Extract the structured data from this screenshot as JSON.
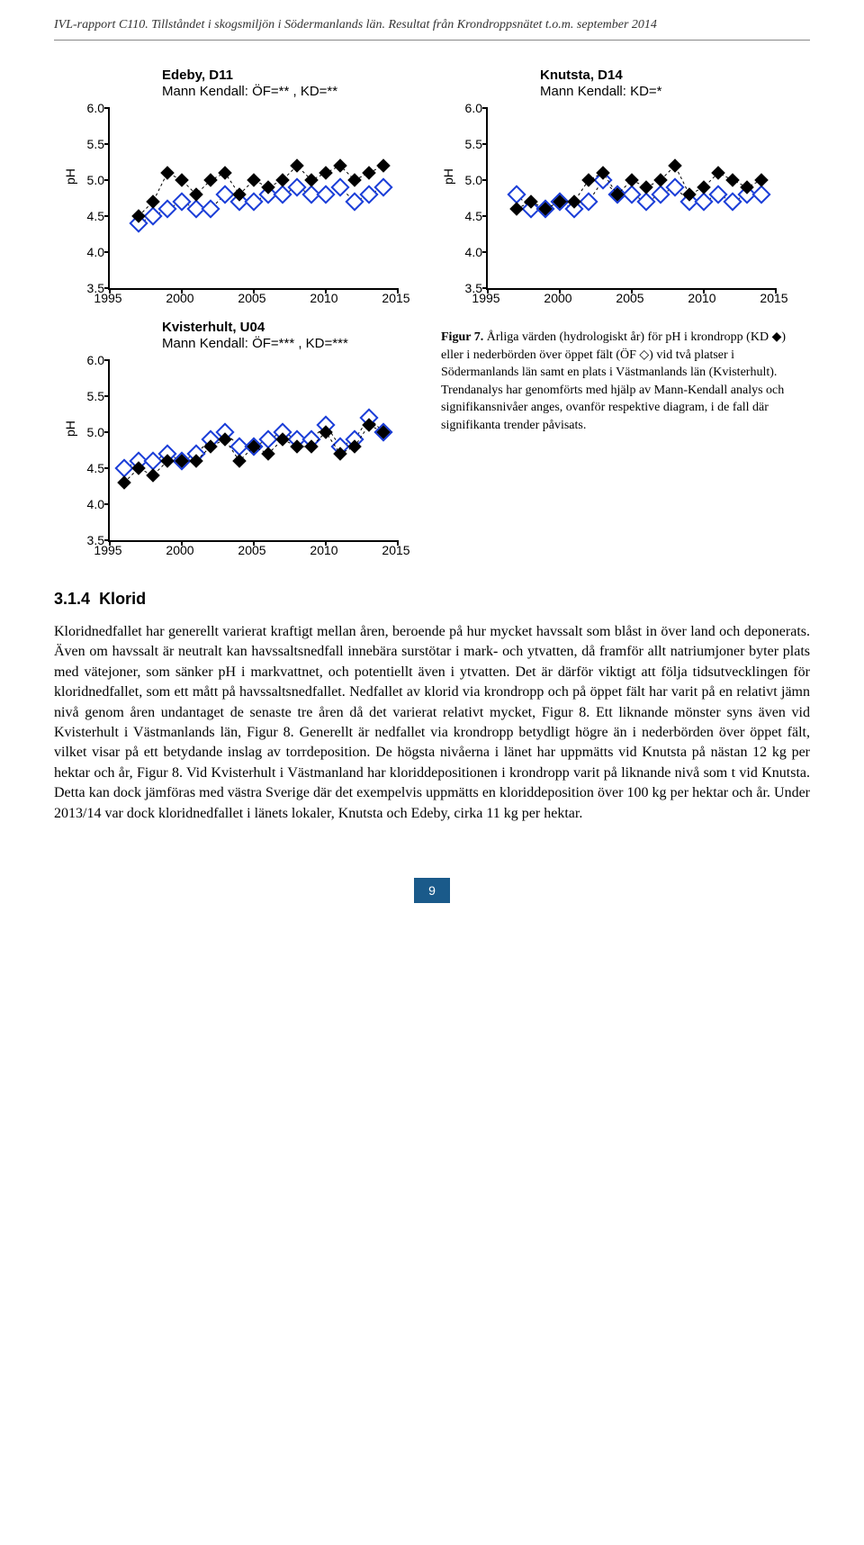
{
  "header": "IVL-rapport C110. Tillståndet i skogsmiljön i Södermanlands län. Resultat från Krondroppsnätet t.o.m. september 2014",
  "charts": [
    {
      "title": "Edeby, D11",
      "subtitle": "Mann Kendall: ÖF=** , KD=**",
      "ylabel": "pH",
      "ylim": [
        3.5,
        6.0
      ],
      "ytick_step": 0.5,
      "xlim": [
        1995,
        2015
      ],
      "xtick_step": 5,
      "series_filled": {
        "color": "#000000",
        "years": [
          1997,
          1998,
          1999,
          2000,
          2001,
          2002,
          2003,
          2004,
          2005,
          2006,
          2007,
          2008,
          2009,
          2010,
          2011,
          2012,
          2013,
          2014
        ],
        "values": [
          4.5,
          4.7,
          5.1,
          5.0,
          4.8,
          5.0,
          5.1,
          4.8,
          5.0,
          4.9,
          5.0,
          5.2,
          5.0,
          5.1,
          5.2,
          5.0,
          5.1,
          5.2
        ]
      },
      "series_open": {
        "color": "#1a3dd8",
        "years": [
          1997,
          1998,
          1999,
          2000,
          2001,
          2002,
          2003,
          2004,
          2005,
          2006,
          2007,
          2008,
          2009,
          2010,
          2011,
          2012,
          2013,
          2014
        ],
        "values": [
          4.4,
          4.5,
          4.6,
          4.7,
          4.6,
          4.6,
          4.8,
          4.7,
          4.7,
          4.8,
          4.8,
          4.9,
          4.8,
          4.8,
          4.9,
          4.7,
          4.8,
          4.9
        ]
      }
    },
    {
      "title": "Knutsta, D14",
      "subtitle": "Mann Kendall: KD=*",
      "ylabel": "pH",
      "ylim": [
        3.5,
        6.0
      ],
      "ytick_step": 0.5,
      "xlim": [
        1995,
        2015
      ],
      "xtick_step": 5,
      "series_filled": {
        "color": "#000000",
        "years": [
          1997,
          1998,
          1999,
          2000,
          2001,
          2002,
          2003,
          2004,
          2005,
          2006,
          2007,
          2008,
          2009,
          2010,
          2011,
          2012,
          2013,
          2014
        ],
        "values": [
          4.6,
          4.7,
          4.6,
          4.7,
          4.7,
          5.0,
          5.1,
          4.8,
          5.0,
          4.9,
          5.0,
          5.2,
          4.8,
          4.9,
          5.1,
          5.0,
          4.9,
          5.0
        ]
      },
      "series_open": {
        "color": "#1a3dd8",
        "years": [
          1997,
          1998,
          1999,
          2000,
          2001,
          2002,
          2003,
          2004,
          2005,
          2006,
          2007,
          2008,
          2009,
          2010,
          2011,
          2012,
          2013,
          2014
        ],
        "values": [
          4.8,
          4.6,
          4.6,
          4.7,
          4.6,
          4.7,
          5.0,
          4.8,
          4.8,
          4.7,
          4.8,
          4.9,
          4.7,
          4.7,
          4.8,
          4.7,
          4.8,
          4.8
        ]
      }
    },
    {
      "title": "Kvisterhult, U04",
      "subtitle": "Mann Kendall: ÖF=*** , KD=***",
      "ylabel": "pH",
      "ylim": [
        3.5,
        6.0
      ],
      "ytick_step": 0.5,
      "xlim": [
        1995,
        2015
      ],
      "xtick_step": 5,
      "series_filled": {
        "color": "#000000",
        "years": [
          1996,
          1997,
          1998,
          1999,
          2000,
          2001,
          2002,
          2003,
          2004,
          2005,
          2006,
          2007,
          2008,
          2009,
          2010,
          2011,
          2012,
          2013,
          2014
        ],
        "values": [
          4.3,
          4.5,
          4.4,
          4.6,
          4.6,
          4.6,
          4.8,
          4.9,
          4.6,
          4.8,
          4.7,
          4.9,
          4.8,
          4.8,
          5.0,
          4.7,
          4.8,
          5.1,
          5.0
        ]
      },
      "series_open": {
        "color": "#1a3dd8",
        "years": [
          1996,
          1997,
          1998,
          1999,
          2000,
          2001,
          2002,
          2003,
          2004,
          2005,
          2006,
          2007,
          2008,
          2009,
          2010,
          2011,
          2012,
          2013,
          2014
        ],
        "values": [
          4.5,
          4.6,
          4.6,
          4.7,
          4.6,
          4.7,
          4.9,
          5.0,
          4.8,
          4.8,
          4.9,
          5.0,
          4.9,
          4.9,
          5.1,
          4.8,
          4.9,
          5.2,
          5.0
        ]
      }
    }
  ],
  "figure_caption": {
    "label": "Figur 7.",
    "text": " Årliga värden (hydrologiskt år) för pH i krondropp (KD ◆) eller i nederbörden över öppet fält (ÖF ◇) vid två platser i Södermanlands län samt en plats i Västmanlands län (Kvisterhult). Trendanalys har genomförts med hjälp av Mann-Kendall analys och signifikansnivåer anges, ovanför respektive diagram, i de fall där signifikanta trender påvisats."
  },
  "section": {
    "number": "3.1.4",
    "title": "Klorid"
  },
  "body": "Kloridnedfallet har generellt varierat kraftigt mellan åren, beroende på hur mycket havssalt som blåst in över land och deponerats. Även om havssalt är neutralt kan havssaltsnedfall innebära surstötar i mark- och ytvatten, då framför allt natriumjoner byter plats med vätejoner, som sänker pH i markvattnet, och potentiellt även i ytvatten. Det är därför viktigt att följa tidsutvecklingen för kloridnedfallet, som ett mått på havssaltsnedfallet. Nedfallet av klorid via krondropp och på öppet fält har varit på en relativt jämn nivå genom åren undantaget de senaste tre åren då det varierat relativt mycket, Figur 8. Ett liknande mönster syns även vid Kvisterhult i Västmanlands län, Figur 8. Generellt är nedfallet via krondropp betydligt högre än i nederbörden över öppet fält, vilket visar på ett betydande inslag av torrdeposition. De högsta nivåerna i länet har uppmätts vid Knutsta på nästan 12 kg per hektar och år, Figur 8. Vid Kvisterhult i Västmanland har kloriddepositionen i krondropp varit på liknande nivå som t vid Knutsta. Detta kan dock jämföras med västra Sverige där det exempelvis uppmätts en kloriddeposition över 100 kg per hektar och år. Under 2013/14 var dock kloridnedfallet i länets lokaler, Knutsta och Edeby, cirka 11 kg per hektar.",
  "page_number": "9"
}
